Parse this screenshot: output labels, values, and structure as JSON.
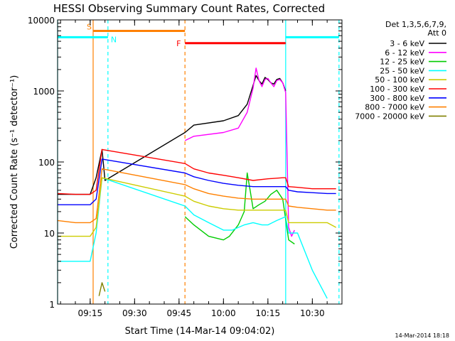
{
  "chart_data": {
    "type": "line",
    "title": "HESSI Observing Summary Count Rates, Corrected",
    "xlabel": "Start Time (14-Mar-14 09:04:02)",
    "ylabel": "Corrected Count Rate (s⁻¹ detector⁻¹)",
    "y_scale": "log",
    "ylim": [
      1,
      10000
    ],
    "xlim": [
      "09:04",
      "10:40"
    ],
    "x_ticks": [
      "09:15",
      "09:30",
      "09:45",
      "10:00",
      "10:15",
      "10:30"
    ],
    "y_ticks": [
      "1",
      "10",
      "100",
      "1000",
      "10000"
    ],
    "legend_placement": "right",
    "legend_title": [
      "Det 1,3,5,6,7,9,",
      "Att 0"
    ],
    "footer_date": "14-Mar-2014 18:18",
    "series": [
      {
        "name": "3 - 6 keV",
        "color": "#000000",
        "x": [
          "09:04",
          "09:15",
          "09:17",
          "09:19",
          "09:20",
          "09:47",
          "09:50",
          "10:00",
          "10:05",
          "10:08",
          "10:10",
          "10:11",
          "10:12",
          "10:13",
          "10:14",
          "10:15",
          "10:16",
          "10:17",
          "10:18",
          "10:19",
          "10:20",
          "10:21"
        ],
        "y": [
          35,
          35,
          60,
          150,
          55,
          260,
          330,
          380,
          450,
          650,
          1200,
          1650,
          1400,
          1250,
          1550,
          1450,
          1300,
          1250,
          1450,
          1500,
          1300,
          1000
        ]
      },
      {
        "name": "6 - 12 keV",
        "color": "#ff00ff",
        "x": [
          "09:47",
          "09:50",
          "10:00",
          "10:05",
          "10:08",
          "10:10",
          "10:11",
          "10:12",
          "10:13",
          "10:14",
          "10:15",
          "10:16",
          "10:17",
          "10:18",
          "10:19",
          "10:20",
          "10:21",
          "10:22",
          "10:23",
          "10:24"
        ],
        "y": [
          200,
          230,
          260,
          300,
          500,
          1100,
          2100,
          1400,
          1150,
          1450,
          1500,
          1300,
          1150,
          1400,
          1450,
          1300,
          950,
          12,
          9,
          11
        ]
      },
      {
        "name": "12 - 25 keV",
        "color": "#00cc00",
        "x": [
          "09:47",
          "09:50",
          "09:55",
          "10:00",
          "10:02",
          "10:05",
          "10:07",
          "10:08",
          "10:09",
          "10:10",
          "10:12",
          "10:14",
          "10:16",
          "10:18",
          "10:20",
          "10:22",
          "10:24"
        ],
        "y": [
          17,
          13,
          9,
          8,
          9,
          13,
          20,
          70,
          40,
          22,
          25,
          28,
          35,
          40,
          30,
          8,
          7
        ]
      },
      {
        "name": "25 - 50 keV",
        "color": "#00ffff",
        "x": [
          "09:04",
          "09:10",
          "09:15",
          "09:17",
          "09:19",
          "09:47",
          "09:50",
          "09:55",
          "10:00",
          "10:03",
          "10:05",
          "10:07",
          "10:10",
          "10:13",
          "10:15",
          "10:18",
          "10:21",
          "10:22",
          "10:25",
          "10:30",
          "10:35"
        ],
        "y": [
          4,
          4,
          4,
          10,
          60,
          24,
          18,
          14,
          11,
          11,
          12,
          13,
          14,
          13,
          13,
          15,
          17,
          10,
          10,
          3,
          1.2
        ]
      },
      {
        "name": "50 - 100 keV",
        "color": "#cccc00",
        "x": [
          "09:04",
          "09:10",
          "09:15",
          "09:17",
          "09:19",
          "09:47",
          "09:50",
          "09:55",
          "10:00",
          "10:05",
          "10:10",
          "10:15",
          "10:20",
          "10:21",
          "10:22",
          "10:25",
          "10:30",
          "10:35",
          "10:38"
        ],
        "y": [
          9,
          9,
          9,
          12,
          60,
          33,
          28,
          24,
          22,
          21,
          21,
          21,
          21,
          21,
          14,
          14,
          14,
          14,
          12
        ]
      },
      {
        "name": "100 - 300 keV",
        "color": "#ff0000",
        "x": [
          "09:04",
          "09:10",
          "09:15",
          "09:17",
          "09:19",
          "09:47",
          "09:50",
          "09:55",
          "10:00",
          "10:05",
          "10:10",
          "10:15",
          "10:20",
          "10:21",
          "10:22",
          "10:25",
          "10:30",
          "10:35",
          "10:38"
        ],
        "y": [
          36,
          35,
          35,
          40,
          150,
          95,
          80,
          70,
          65,
          60,
          55,
          58,
          60,
          60,
          45,
          44,
          42,
          42,
          42
        ]
      },
      {
        "name": "300 - 800 keV",
        "color": "#0000ff",
        "x": [
          "09:04",
          "09:10",
          "09:15",
          "09:17",
          "09:19",
          "09:47",
          "09:50",
          "09:55",
          "10:00",
          "10:05",
          "10:10",
          "10:15",
          "10:20",
          "10:21",
          "10:22",
          "10:25",
          "10:30",
          "10:35",
          "10:38"
        ],
        "y": [
          25,
          25,
          25,
          30,
          110,
          70,
          62,
          55,
          50,
          47,
          45,
          45,
          45,
          45,
          40,
          38,
          37,
          36,
          36
        ]
      },
      {
        "name": "800 - 7000 keV",
        "color": "#ff8000",
        "x": [
          "09:04",
          "09:10",
          "09:15",
          "09:17",
          "09:19",
          "09:47",
          "09:50",
          "09:55",
          "10:00",
          "10:05",
          "10:10",
          "10:15",
          "10:20",
          "10:21",
          "10:22",
          "10:25",
          "10:30",
          "10:35",
          "10:38"
        ],
        "y": [
          15,
          14,
          14,
          16,
          80,
          48,
          42,
          36,
          33,
          31,
          30,
          30,
          30,
          30,
          24,
          23,
          22,
          21,
          21
        ]
      },
      {
        "name": "7000 - 20000 keV",
        "color": "#808000",
        "x": [
          "09:18",
          "09:19",
          "09:20"
        ],
        "y": [
          1.3,
          2,
          1.5
        ]
      }
    ],
    "flags": [
      {
        "label": "S",
        "color": "#ff8000",
        "start": "09:16",
        "end": "09:47",
        "y": 7000
      },
      {
        "label": "N",
        "color": "#00ffff",
        "start": "09:04",
        "end": "09:21",
        "y": 5700
      },
      {
        "label": "F",
        "color": "#ff0000",
        "start": "09:47",
        "end": "10:21",
        "y": 4700
      },
      {
        "label": "",
        "color": "#00ffff",
        "start": "10:21",
        "end": "10:39",
        "y": 5700
      }
    ],
    "vertical_lines": [
      {
        "x": "09:04",
        "color": "#00ffff",
        "style": "solid"
      },
      {
        "x": "09:16",
        "color": "#ff8000",
        "style": "solid"
      },
      {
        "x": "09:21",
        "color": "#00ffff",
        "style": "dashed"
      },
      {
        "x": "09:47",
        "color": "#ff8000",
        "style": "dashed"
      },
      {
        "x": "10:21",
        "color": "#00ffff",
        "style": "solid"
      },
      {
        "x": "10:39",
        "color": "#00ffff",
        "style": "dashed"
      }
    ]
  }
}
